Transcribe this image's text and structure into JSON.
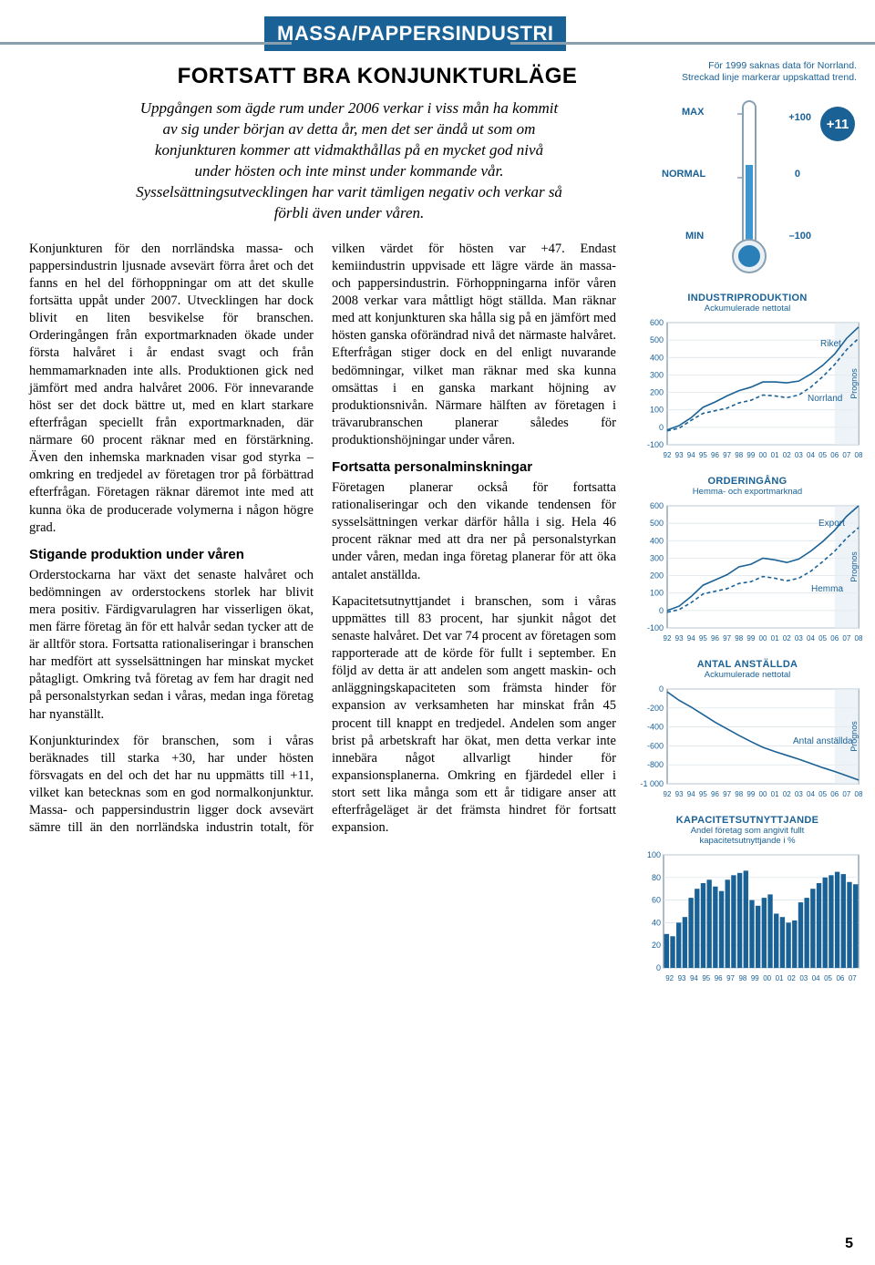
{
  "header": {
    "banner": "MASSA/PAPPERSINDUSTRI",
    "subtitle": "FORTSATT BRA KONJUNKTURLÄGE",
    "lead": "Uppgången som ägde rum under 2006 verkar i viss mån ha kommit av sig under början av detta år, men det ser ändå ut som om konjunkturen kommer att vidmakthållas på en mycket god nivå under hösten och inte minst under kommande vår. Sysselsättningsutvecklingen har varit tämligen negativ och verkar så förbli även under våren."
  },
  "body": {
    "p1": "Konjunkturen för den norrländska massa- och pappersindustrin ljusnade avsevärt förra året och det fanns en hel del förhoppningar om att det skulle fortsätta uppåt under 2007. Utvecklingen har dock blivit en liten besvikelse för branschen. Orderingången från exportmarknaden ökade under första halvåret i år endast svagt och från hemmamarknaden inte alls. Produktionen gick ned jämfört med andra halvåret 2006. För innevarande höst ser det dock bättre ut, med en klart starkare efterfrågan speciellt från exportmarknaden, där närmare 60 procent räknar med en förstärkning. Även den inhemska marknaden visar god styrka – omkring en tredjedel av företagen tror på förbättrad efterfrågan. Företagen räknar däremot inte med att kunna öka de producerade volymerna i någon högre grad.",
    "h1": "Stigande produktion under våren",
    "p2": "Orderstockarna har växt det senaste halvåret och bedömningen av orderstockens storlek har blivit mera positiv. Färdigvarulagren har visserligen ökat, men färre företag än för ett halvår sedan tycker att de är alltför stora. Fortsatta rationaliseringar i branschen har medfört att sysselsättningen har minskat mycket påtagligt. Omkring två företag av fem har dragit ned på personalstyrkan sedan i våras, medan inga företag har nyanställt.",
    "p3": "Konjunkturindex för branschen, som i våras beräknades till starka +30, har under hösten försvagats en del och det har nu uppmätts till +11, vilket kan betecknas som en god normalkonjunktur. Massa- och pappersindustrin ligger dock avsevärt sämre till än den norrländska industrin totalt, för vilken värdet för hösten var +47. Endast kemiindustrin uppvisade ett lägre värde än massa- och pappersindustrin. Förhoppningarna inför våren 2008 verkar vara måttligt högt ställda. Man räknar med att konjunkturen ska hålla sig på en jämfört med hösten ganska oförändrad nivå det närmaste halvåret. Efterfrågan stiger dock en del enligt nuvarande bedömningar, vilket man räknar med ska kunna omsättas i en ganska markant höjning av produktionsnivån. Närmare hälften av företagen i trävarubranschen planerar således för produktionshöjningar under våren.",
    "h2": "Fortsatta personalminskningar",
    "p4": "Företagen planerar också för fortsatta rationaliseringar och den vikande tendensen för sysselsättningen verkar därför hålla i sig. Hela 46 procent räknar med att dra ner på personalstyrkan under våren, medan inga företag planerar för att öka antalet anställda.",
    "p5": "Kapacitetsutnyttjandet i branschen, som i våras uppmättes till 83 procent, har sjunkit något det senaste halvåret. Det var 74 procent av företagen som rapporterade att de körde för fullt i september. En följd av detta är att andelen som angett maskin- och anläggningskapaciteten som främsta hinder för expansion av verksamheten har minskat från 45 procent till knappt en tredjedel. Andelen som anger brist på arbetskraft har ökat, men detta verkar inte innebära något allvarligt hinder för expansionsplanerna. Omkring en fjärdedel eller i stort sett lika många som ett år tidigare anser att efterfrågeläget är det främsta hindret för fortsatt expansion."
  },
  "sidebar": {
    "note1": "För 1999 saknas data för Norrland.",
    "note2": "Streckad linje markerar uppskattad trend.",
    "thermometer": {
      "max_label": "MAX",
      "normal_label": "NORMAL",
      "min_label": "MIN",
      "max_val": "+100",
      "zero_val": "0",
      "min_val": "–100",
      "badge": "+11",
      "tube_fill_color": "#3c97d1",
      "bulb_color": "#2b7fb8",
      "outline_color": "#88a0b0"
    },
    "chart_production": {
      "type": "line",
      "title": "INDUSTRIPRODUKTION",
      "subtitle": "Ackumulerade nettotal",
      "ylim": [
        -100,
        600
      ],
      "ytick_step": 100,
      "ytick_labels": [
        "-100",
        "0",
        "100",
        "200",
        "300",
        "400",
        "500",
        "600"
      ],
      "x_labels": [
        "92",
        "93",
        "94",
        "95",
        "96",
        "97",
        "98",
        "99",
        "00",
        "01",
        "02",
        "03",
        "04",
        "05",
        "06",
        "07",
        "08"
      ],
      "series": [
        {
          "name": "Riket",
          "label": "Riket",
          "color": "#1a6196",
          "style": "solid",
          "values": [
            -15,
            10,
            55,
            115,
            145,
            180,
            210,
            230,
            260,
            260,
            255,
            265,
            305,
            355,
            420,
            510,
            575
          ]
        },
        {
          "name": "Norrland",
          "label": "Norrland",
          "color": "#1a6196",
          "style": "dashed",
          "values": [
            -20,
            -5,
            40,
            80,
            95,
            110,
            140,
            155,
            185,
            180,
            170,
            185,
            230,
            290,
            360,
            445,
            510
          ]
        }
      ],
      "prognos_label": "Prognos",
      "grid_color": "#d7e0e6",
      "background_color": "#ffffff"
    },
    "chart_orders": {
      "type": "line",
      "title": "ORDERINGÅNG",
      "subtitle": "Hemma- och exportmarknad",
      "ylim": [
        -100,
        600
      ],
      "ytick_step": 100,
      "ytick_labels": [
        "-100",
        "0",
        "100",
        "200",
        "300",
        "400",
        "500",
        "600"
      ],
      "x_labels": [
        "92",
        "93",
        "94",
        "95",
        "96",
        "97",
        "98",
        "99",
        "00",
        "01",
        "02",
        "03",
        "04",
        "05",
        "06",
        "07",
        "08"
      ],
      "series": [
        {
          "name": "Export",
          "label": "Export",
          "color": "#1a6196",
          "style": "solid",
          "values": [
            0,
            25,
            80,
            145,
            175,
            205,
            250,
            265,
            300,
            290,
            275,
            295,
            340,
            395,
            460,
            540,
            600
          ]
        },
        {
          "name": "Hemma",
          "label": "Hemma",
          "color": "#1a6196",
          "style": "dashed",
          "values": [
            -10,
            5,
            45,
            95,
            110,
            125,
            155,
            165,
            195,
            185,
            170,
            185,
            225,
            280,
            340,
            415,
            475
          ]
        }
      ],
      "prognos_label": "Prognos",
      "grid_color": "#d7e0e6",
      "background_color": "#ffffff"
    },
    "chart_employees": {
      "type": "line",
      "title": "ANTAL ANSTÄLLDA",
      "subtitle": "Ackumulerade nettotal",
      "ylim": [
        -1000,
        0
      ],
      "ytick_step": 200,
      "ytick_labels": [
        "-1 000",
        "-800",
        "-600",
        "-400",
        "-200",
        "0"
      ],
      "x_labels": [
        "92",
        "93",
        "94",
        "95",
        "96",
        "97",
        "98",
        "99",
        "00",
        "01",
        "02",
        "03",
        "04",
        "05",
        "06",
        "07",
        "08"
      ],
      "series": [
        {
          "name": "Antal anställda",
          "label": "Antal anställda",
          "color": "#1a6196",
          "style": "solid",
          "values": [
            -30,
            -120,
            -190,
            -270,
            -350,
            -420,
            -490,
            -555,
            -615,
            -660,
            -700,
            -740,
            -785,
            -830,
            -870,
            -915,
            -960
          ]
        }
      ],
      "prognos_label": "Prognos",
      "grid_color": "#d7e0e6",
      "background_color": "#ffffff"
    },
    "chart_capacity": {
      "type": "bar",
      "title": "KAPACITETSUTNYTTJANDE",
      "subtitle1": "Andel företag som angivit fullt",
      "subtitle2": "kapacitetsutnyttjande i %",
      "ylim": [
        0,
        100
      ],
      "ytick_step": 20,
      "ytick_labels": [
        "0",
        "20",
        "40",
        "60",
        "80",
        "100"
      ],
      "x_labels_major": [
        "92",
        "93",
        "94",
        "95",
        "96",
        "97",
        "98",
        "99",
        "00",
        "01",
        "02",
        "03",
        "04",
        "05",
        "06",
        "07"
      ],
      "values": [
        30,
        28,
        40,
        45,
        62,
        70,
        75,
        78,
        72,
        68,
        78,
        82,
        84,
        86,
        60,
        55,
        62,
        65,
        48,
        45,
        40,
        42,
        58,
        62,
        70,
        75,
        80,
        82,
        85,
        83,
        76,
        74
      ],
      "bar_color": "#1a6196",
      "grid_color": "#d7e0e6",
      "background_color": "#ffffff"
    }
  },
  "page_number": "5"
}
